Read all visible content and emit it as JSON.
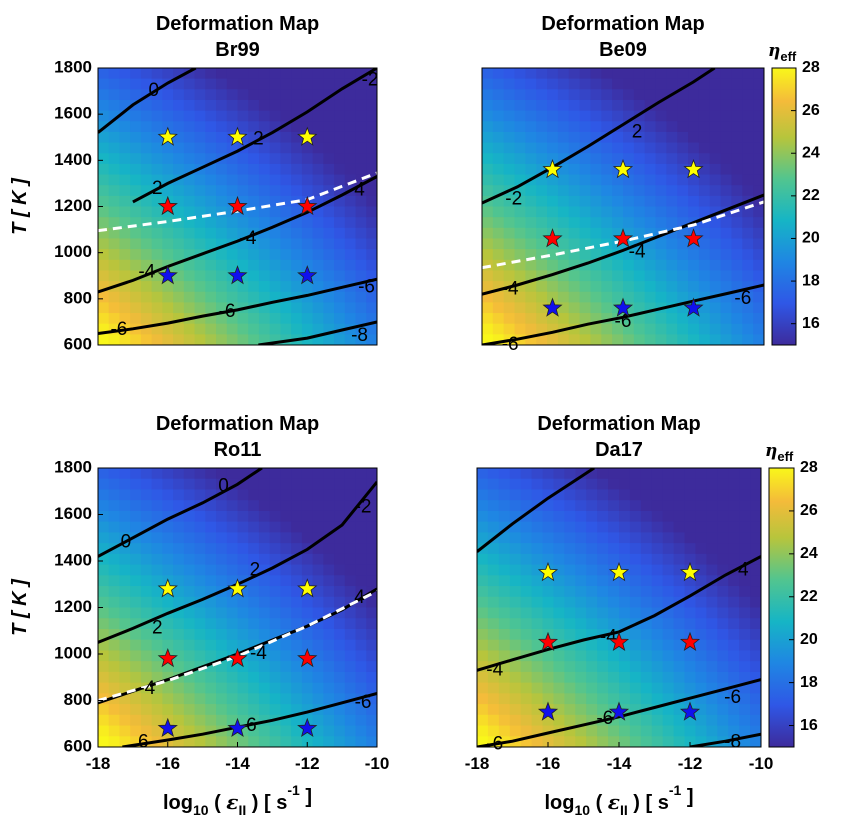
{
  "chart_data": [
    {
      "type": "heatmap",
      "title": "Deformation Map",
      "subtitle": "Br99",
      "xlabel": "",
      "ylabel": "T [ K ]",
      "xlim": [
        -18,
        -10
      ],
      "ylim": [
        600,
        1800
      ],
      "x_ticks": [],
      "y_ticks": [
        "600",
        "800",
        "1000",
        "1200",
        "1400",
        "1600",
        "1800"
      ],
      "colorscale": [
        15,
        28
      ],
      "contours": [
        {
          "label": "0",
          "points": [
            [
              -18,
              1520
            ],
            [
              -17,
              1640
            ],
            [
              -16,
              1735
            ],
            [
              -15.2,
              1800
            ]
          ]
        },
        {
          "label": "-2",
          "points": [
            [
              -17,
              1220
            ],
            [
              -16,
              1300
            ],
            [
              -15,
              1370
            ],
            [
              -14,
              1440
            ],
            [
              -13,
              1520
            ],
            [
              -12,
              1610
            ],
            [
              -11,
              1710
            ],
            [
              -10,
              1800
            ]
          ]
        },
        {
          "label": "-4",
          "points": [
            [
              -18,
              830
            ],
            [
              -17,
              880
            ],
            [
              -16,
              940
            ],
            [
              -15,
              995
            ],
            [
              -14,
              1050
            ],
            [
              -13,
              1110
            ],
            [
              -12,
              1175
            ],
            [
              -11,
              1250
            ],
            [
              -10,
              1330
            ]
          ]
        },
        {
          "label": "-6",
          "points": [
            [
              -18,
              650
            ],
            [
              -17,
              670
            ],
            [
              -16,
              695
            ],
            [
              -15,
              725
            ],
            [
              -14,
              752
            ],
            [
              -13,
              785
            ],
            [
              -12,
              815
            ],
            [
              -11,
              850
            ],
            [
              -10,
              885
            ]
          ]
        },
        {
          "label": "-8",
          "points": [
            [
              -13.4,
              600
            ],
            [
              -12,
              630
            ],
            [
              -11,
              665
            ],
            [
              -10,
              700
            ]
          ]
        }
      ],
      "contour_labels": [
        {
          "text": "0",
          "x": -16.4,
          "y": 1700
        },
        {
          "text": "-2",
          "x": -10.2,
          "y": 1745
        },
        {
          "text": "2",
          "x": -13.4,
          "y": 1490
        },
        {
          "text": "2",
          "x": -16.3,
          "y": 1275
        },
        {
          "text": "4",
          "x": -10.5,
          "y": 1270
        },
        {
          "text": "-4",
          "x": -13.7,
          "y": 1060
        },
        {
          "text": "-4",
          "x": -16.6,
          "y": 915
        },
        {
          "text": "-6",
          "x": -10.3,
          "y": 850
        },
        {
          "text": "-6",
          "x": -14.3,
          "y": 742
        },
        {
          "text": "-6",
          "x": -17.4,
          "y": 665
        },
        {
          "text": "-8",
          "x": -10.5,
          "y": 640
        }
      ],
      "boundary": [
        [
          -18,
          1095
        ],
        [
          -16,
          1135
        ],
        [
          -14,
          1180
        ],
        [
          -12,
          1230
        ],
        [
          -10,
          1345
        ]
      ],
      "markers": [
        {
          "color": "#ffff00",
          "points": [
            [
              -16,
              1500
            ],
            [
              -14,
              1500
            ],
            [
              -12,
              1500
            ]
          ]
        },
        {
          "color": "#ff0000",
          "points": [
            [
              -16,
              1200
            ],
            [
              -14,
              1200
            ],
            [
              -12,
              1200
            ]
          ]
        },
        {
          "color": "#1010ee",
          "points": [
            [
              -16,
              900
            ],
            [
              -14,
              900
            ],
            [
              -12,
              900
            ]
          ]
        }
      ]
    },
    {
      "type": "heatmap",
      "title": "Deformation Map",
      "subtitle": "Be09",
      "xlabel": "",
      "ylabel": "",
      "xlim": [
        -18,
        -10
      ],
      "ylim": [
        600,
        1800
      ],
      "x_ticks": [],
      "y_ticks": [],
      "colorscale": [
        15,
        28
      ],
      "colorbar_label": "η",
      "colorbar_label_sub": "eff",
      "colorbar_ticks": [
        "16",
        "18",
        "20",
        "22",
        "24",
        "26",
        "28"
      ],
      "contours": [
        {
          "label": "-2",
          "points": [
            [
              -18,
              1215
            ],
            [
              -17,
              1285
            ],
            [
              -16,
              1370
            ],
            [
              -15,
              1460
            ],
            [
              -14,
              1555
            ],
            [
              -13,
              1650
            ],
            [
              -12,
              1740
            ],
            [
              -11.4,
              1800
            ]
          ]
        },
        {
          "label": "-4",
          "points": [
            [
              -18,
              820
            ],
            [
              -17,
              860
            ],
            [
              -16,
              905
            ],
            [
              -15,
              955
            ],
            [
              -14,
              1010
            ],
            [
              -13,
              1070
            ],
            [
              -12,
              1130
            ],
            [
              -11,
              1190
            ],
            [
              -10,
              1250
            ]
          ]
        },
        {
          "label": "-6",
          "points": [
            [
              -18,
              600
            ],
            [
              -17,
              625
            ],
            [
              -16,
              655
            ],
            [
              -15,
              690
            ],
            [
              -14,
              720
            ],
            [
              -13,
              755
            ],
            [
              -12,
              790
            ],
            [
              -11,
              825
            ],
            [
              -10,
              860
            ]
          ]
        }
      ],
      "contour_labels": [
        {
          "text": "2",
          "x": -13.6,
          "y": 1520
        },
        {
          "text": "-2",
          "x": -17.1,
          "y": 1230
        },
        {
          "text": "-4",
          "x": -13.6,
          "y": 1000
        },
        {
          "text": "-4",
          "x": -17.2,
          "y": 840
        },
        {
          "text": "-6",
          "x": -10.6,
          "y": 800
        },
        {
          "text": "-6",
          "x": -14.0,
          "y": 700
        },
        {
          "text": "-6",
          "x": -17.2,
          "y": 600
        }
      ],
      "boundary": [
        [
          -18,
          935
        ],
        [
          -16,
          990
        ],
        [
          -14,
          1050
        ],
        [
          -12,
          1120
        ],
        [
          -10,
          1220
        ]
      ],
      "markers": [
        {
          "color": "#ffff00",
          "points": [
            [
              -16,
              1360
            ],
            [
              -14,
              1360
            ],
            [
              -12,
              1360
            ]
          ]
        },
        {
          "color": "#ff0000",
          "points": [
            [
              -16,
              1060
            ],
            [
              -14,
              1060
            ],
            [
              -12,
              1060
            ]
          ]
        },
        {
          "color": "#1010ee",
          "points": [
            [
              -16,
              760
            ],
            [
              -14,
              760
            ],
            [
              -12,
              760
            ]
          ]
        }
      ]
    },
    {
      "type": "heatmap",
      "title": "Deformation Map",
      "subtitle": "Ro11",
      "xlabel": "log10 ( ε_II ) [ s^-1 ]",
      "ylabel": "T [ K ]",
      "xlim": [
        -18,
        -10
      ],
      "ylim": [
        600,
        1800
      ],
      "x_ticks": [
        "-18",
        "-16",
        "-14",
        "-12",
        "-10"
      ],
      "y_ticks": [
        "600",
        "800",
        "1000",
        "1200",
        "1400",
        "1600",
        "1800"
      ],
      "colorscale": [
        15,
        28
      ],
      "contours": [
        {
          "label": "0",
          "points": [
            [
              -18,
              1420
            ],
            [
              -17,
              1500
            ],
            [
              -16,
              1580
            ],
            [
              -15,
              1650
            ],
            [
              -14,
              1730
            ],
            [
              -13.3,
              1800
            ]
          ]
        },
        {
          "label": "-2",
          "points": [
            [
              -18,
              1050
            ],
            [
              -17,
              1110
            ],
            [
              -16,
              1175
            ],
            [
              -15,
              1235
            ],
            [
              -14,
              1300
            ],
            [
              -13,
              1370
            ],
            [
              -12,
              1450
            ],
            [
              -11,
              1555
            ],
            [
              -10,
              1740
            ]
          ]
        },
        {
          "label": "-4",
          "points": [
            [
              -18,
              790
            ],
            [
              -17,
              840
            ],
            [
              -16,
              890
            ],
            [
              -15,
              945
            ],
            [
              -14,
              1000
            ],
            [
              -13,
              1060
            ],
            [
              -12,
              1120
            ],
            [
              -11,
              1190
            ],
            [
              -10,
              1280
            ]
          ]
        },
        {
          "label": "-6",
          "points": [
            [
              -17.3,
              600
            ],
            [
              -16,
              630
            ],
            [
              -15,
              655
            ],
            [
              -14,
              685
            ],
            [
              -13,
              715
            ],
            [
              -12,
              750
            ],
            [
              -11,
              790
            ],
            [
              -10,
              830
            ]
          ]
        }
      ],
      "contour_labels": [
        {
          "text": "0",
          "x": -14.4,
          "y": 1720
        },
        {
          "text": "0",
          "x": -17.2,
          "y": 1480
        },
        {
          "text": "-2",
          "x": -10.4,
          "y": 1630
        },
        {
          "text": "2",
          "x": -13.5,
          "y": 1360
        },
        {
          "text": "2",
          "x": -16.3,
          "y": 1110
        },
        {
          "text": "4",
          "x": -10.5,
          "y": 1240
        },
        {
          "text": "-4",
          "x": -13.4,
          "y": 1000
        },
        {
          "text": "-4",
          "x": -16.6,
          "y": 850
        },
        {
          "text": "-6",
          "x": -10.4,
          "y": 790
        },
        {
          "text": "6",
          "x": -13.6,
          "y": 690
        },
        {
          "text": "6",
          "x": -16.7,
          "y": 620
        }
      ],
      "boundary": [
        [
          -18,
          800
        ],
        [
          -16,
          885
        ],
        [
          -14,
          990
        ],
        [
          -12,
          1120
        ],
        [
          -10,
          1270
        ]
      ],
      "markers": [
        {
          "color": "#ffff00",
          "points": [
            [
              -16,
              1280
            ],
            [
              -14,
              1280
            ],
            [
              -12,
              1280
            ]
          ]
        },
        {
          "color": "#ff0000",
          "points": [
            [
              -16,
              980
            ],
            [
              -14,
              980
            ],
            [
              -12,
              980
            ]
          ]
        },
        {
          "color": "#1010ee",
          "points": [
            [
              -16,
              680
            ],
            [
              -14,
              680
            ],
            [
              -12,
              680
            ]
          ]
        }
      ]
    },
    {
      "type": "heatmap",
      "title": "Deformation Map",
      "subtitle": "Da17",
      "xlabel": "log10 ( ε_II ) [ s^-1 ]",
      "ylabel": "",
      "xlim": [
        -18,
        -10
      ],
      "ylim": [
        600,
        1800
      ],
      "x_ticks": [
        "-18",
        "-16",
        "-14",
        "-12",
        "-10"
      ],
      "y_ticks": [],
      "colorscale": [
        15,
        28
      ],
      "colorbar_label": "η",
      "colorbar_label_sub": "eff",
      "colorbar_ticks": [
        "16",
        "18",
        "20",
        "22",
        "24",
        "26",
        "28"
      ],
      "contours": [
        {
          "label": "",
          "points": [
            [
              -18,
              1440
            ],
            [
              -17,
              1560
            ],
            [
              -16,
              1670
            ],
            [
              -15,
              1770
            ],
            [
              -14.7,
              1800
            ]
          ]
        },
        {
          "label": "-4",
          "points": [
            [
              -18,
              930
            ],
            [
              -17,
              975
            ],
            [
              -16,
              1020
            ],
            [
              -15,
              1060
            ],
            [
              -14,
              1095
            ],
            [
              -13,
              1165
            ],
            [
              -12,
              1250
            ],
            [
              -11,
              1340
            ],
            [
              -10,
              1420
            ]
          ]
        },
        {
          "label": "-6",
          "points": [
            [
              -18,
              600
            ],
            [
              -17,
              625
            ],
            [
              -16,
              660
            ],
            [
              -15,
              695
            ],
            [
              -14,
              730
            ],
            [
              -13,
              770
            ],
            [
              -12,
              810
            ],
            [
              -11,
              850
            ],
            [
              -10,
              890
            ]
          ]
        },
        {
          "label": "-8",
          "points": [
            [
              -12,
              600
            ],
            [
              -11,
              625
            ],
            [
              -10,
              655
            ]
          ]
        }
      ],
      "contour_labels": [
        {
          "text": "4",
          "x": -10.5,
          "y": 1360
        },
        {
          "text": "-4",
          "x": -14.3,
          "y": 1070
        },
        {
          "text": "-4",
          "x": -17.5,
          "y": 930
        },
        {
          "text": "-6",
          "x": -10.8,
          "y": 810
        },
        {
          "text": "-6",
          "x": -14.4,
          "y": 720
        },
        {
          "text": "-6",
          "x": -17.5,
          "y": 610
        },
        {
          "text": "-8",
          "x": -10.8,
          "y": 620
        }
      ],
      "boundary": [],
      "markers": [
        {
          "color": "#ffff00",
          "points": [
            [
              -16,
              1350
            ],
            [
              -14,
              1350
            ],
            [
              -12,
              1350
            ]
          ]
        },
        {
          "color": "#ff0000",
          "points": [
            [
              -16,
              1050
            ],
            [
              -14,
              1050
            ],
            [
              -12,
              1050
            ]
          ]
        },
        {
          "color": "#1010ee",
          "points": [
            [
              -16,
              750
            ],
            [
              -14,
              750
            ],
            [
              -12,
              750
            ]
          ]
        }
      ]
    }
  ]
}
